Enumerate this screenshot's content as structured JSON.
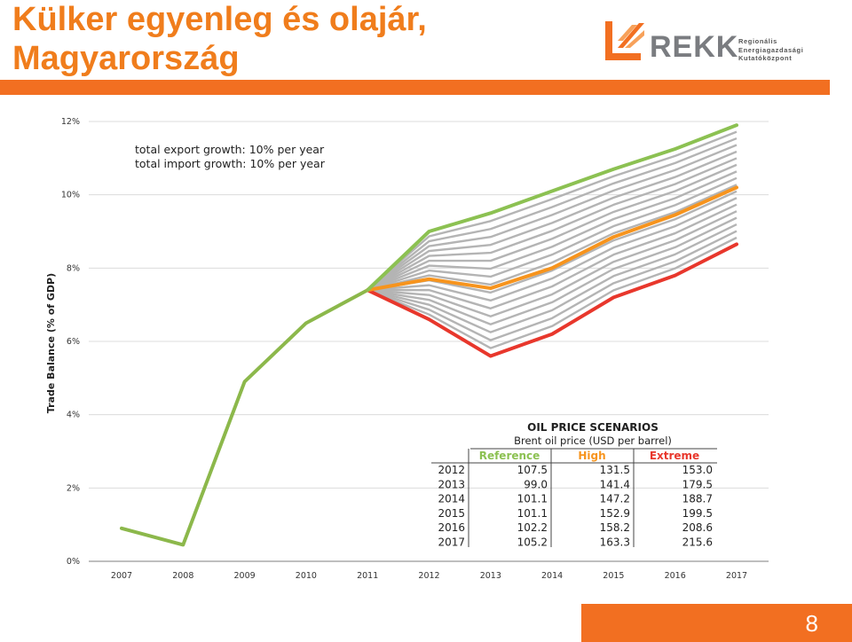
{
  "slide": {
    "title_line1": "Külker egyenleg és olajár,",
    "title_line2": "Magyarország",
    "page_number": "8",
    "accent_color": "#f26f21"
  },
  "logo": {
    "word": "REKK",
    "sub_lines": [
      "Regionális",
      "Energiagazdasági",
      "Kutatóközpont"
    ]
  },
  "chart_data": {
    "type": "line",
    "ylabel": "Trade Balance (% of GDP)",
    "xlabel": "",
    "x": [
      2007,
      2008,
      2009,
      2010,
      2011,
      2012,
      2013,
      2014,
      2015,
      2016,
      2017
    ],
    "x_tick_labels": [
      "2007",
      "2008",
      "2009",
      "2010",
      "2011",
      "2012",
      "2013",
      "2014",
      "2015",
      "2016",
      "2017"
    ],
    "ylim": [
      0,
      12
    ],
    "y_ticks": [
      0,
      2,
      4,
      6,
      8,
      10,
      12
    ],
    "y_tick_labels": [
      "0%",
      "2%",
      "4%",
      "6%",
      "8%",
      "10%",
      "12%"
    ],
    "grid": "horizontal",
    "annotations": [
      "total export growth: 10% per year",
      "total import growth: 10% per year"
    ],
    "history": {
      "x": [
        2007,
        2008,
        2009,
        2010,
        2011
      ],
      "values": [
        0.9,
        0.45,
        4.9,
        6.5,
        7.4
      ],
      "color": "#8cb84b"
    },
    "series": [
      {
        "x": [
          2011,
          2012,
          2013,
          2014,
          2015,
          2016,
          2017
        ],
        "values": [
          7.4,
          9.0,
          9.5,
          10.1,
          10.7,
          11.25,
          11.9
        ],
        "color": "#8cc152"
      },
      {
        "x": [
          2011,
          2012,
          2013,
          2014,
          2015,
          2016,
          2017
        ],
        "values": [
          7.4,
          7.7,
          7.45,
          8.0,
          8.85,
          9.45,
          10.2
        ],
        "color": "#f7941d"
      },
      {
        "x": [
          2011,
          2012,
          2013,
          2014,
          2015,
          2016,
          2017
        ],
        "values": [
          7.4,
          6.6,
          5.6,
          6.2,
          7.2,
          7.8,
          8.65
        ],
        "color": "#e8372c"
      }
    ],
    "band": {
      "count": 18,
      "color": "#b4b4b4",
      "upper": [
        7.4,
        9.0,
        9.5,
        10.1,
        10.7,
        11.25,
        11.9
      ],
      "lower": [
        7.4,
        6.6,
        5.6,
        6.2,
        7.2,
        7.8,
        8.65
      ]
    },
    "table": {
      "title": "OIL PRICE SCENARIOS",
      "subtitle": "Brent oil price (USD per barrel)",
      "headers": [
        "Reference",
        "High",
        "Extreme"
      ],
      "header_colors": [
        "#8cc152",
        "#f7941d",
        "#e8372c"
      ],
      "rows": [
        {
          "year": "2012",
          "values": [
            "107.5",
            "131.5",
            "153.0"
          ]
        },
        {
          "year": "2013",
          "values": [
            "99.0",
            "141.4",
            "179.5"
          ]
        },
        {
          "year": "2014",
          "values": [
            "101.1",
            "147.2",
            "188.7"
          ]
        },
        {
          "year": "2015",
          "values": [
            "101.1",
            "152.9",
            "199.5"
          ]
        },
        {
          "year": "2016",
          "values": [
            "102.2",
            "158.2",
            "208.6"
          ]
        },
        {
          "year": "2017",
          "values": [
            "105.2",
            "163.3",
            "215.6"
          ]
        }
      ]
    }
  }
}
